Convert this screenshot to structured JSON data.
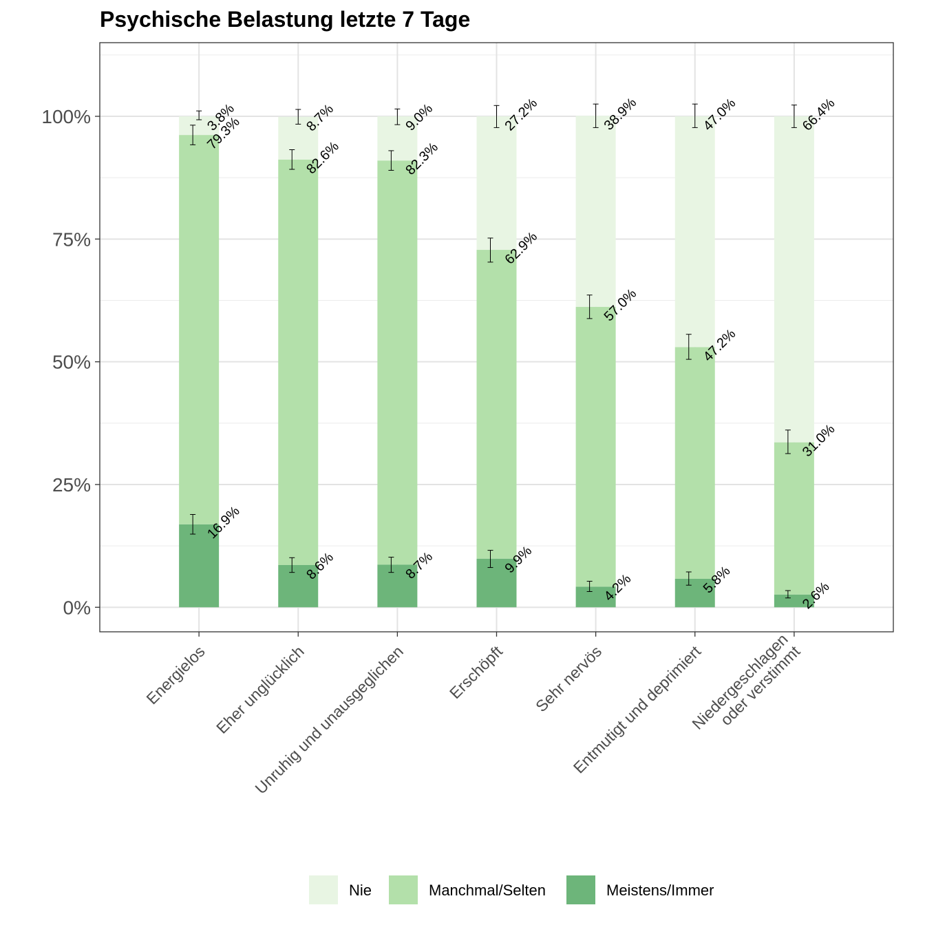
{
  "chart_data": {
    "type": "bar",
    "stacked": true,
    "title": "Psychische Belastung letzte 7 Tage",
    "xlabel": "",
    "ylabel": "",
    "ylim": [
      -0.05,
      1.15
    ],
    "y_ticks": [
      0,
      0.25,
      0.5,
      0.75,
      1.0
    ],
    "y_tick_labels": [
      "0%",
      "25%",
      "50%",
      "75%",
      "100%"
    ],
    "grid": true,
    "legend_position": "bottom",
    "categories": [
      [
        "Energielos"
      ],
      [
        "Eher unglücklich"
      ],
      [
        "Unruhig und unausgeglichen"
      ],
      [
        "Erschöpft"
      ],
      [
        "Sehr nervös"
      ],
      [
        "Entmutigt und deprimiert"
      ],
      [
        "Niedergeschlagen",
        "oder verstimmt"
      ]
    ],
    "series": [
      {
        "name": "Meistens/Immer",
        "color": "#6db57a",
        "values": [
          0.169,
          0.086,
          0.087,
          0.099,
          0.042,
          0.058,
          0.026
        ],
        "labels": [
          "16.9%",
          "8.6%",
          "8.7%",
          "9.9%",
          "4.2%",
          "5.8%",
          "2.6%"
        ],
        "error_low": [
          0.149,
          0.071,
          0.071,
          0.081,
          0.032,
          0.045,
          0.019
        ],
        "error_high": [
          0.189,
          0.101,
          0.102,
          0.116,
          0.053,
          0.072,
          0.034
        ]
      },
      {
        "name": "Manchmal/Selten",
        "color": "#b3e0aa",
        "values": [
          0.793,
          0.826,
          0.823,
          0.629,
          0.57,
          0.472,
          0.31
        ],
        "labels": [
          "79.3%",
          "82.6%",
          "82.3%",
          "62.9%",
          "57.0%",
          "47.2%",
          "31.0%"
        ],
        "error_low": [
          0.942,
          0.892,
          0.89,
          0.703,
          0.588,
          0.505,
          0.313
        ],
        "error_high": [
          0.982,
          0.932,
          0.93,
          0.752,
          0.636,
          0.556,
          0.361
        ]
      },
      {
        "name": "Nie",
        "color": "#e8f5e3",
        "values": [
          0.038,
          0.087,
          0.09,
          0.272,
          0.389,
          0.47,
          0.664
        ],
        "labels": [
          "3.8%",
          "8.7%",
          "9.0%",
          "27.2%",
          "38.9%",
          "47.0%",
          "66.4%"
        ],
        "error_low": [
          0.993,
          0.984,
          0.983,
          0.977,
          0.977,
          0.977,
          0.977
        ],
        "error_high": [
          1.011,
          1.014,
          1.015,
          1.022,
          1.025,
          1.025,
          1.023
        ]
      }
    ],
    "legend_order": [
      "Nie",
      "Manchmal/Selten",
      "Meistens/Immer"
    ]
  }
}
